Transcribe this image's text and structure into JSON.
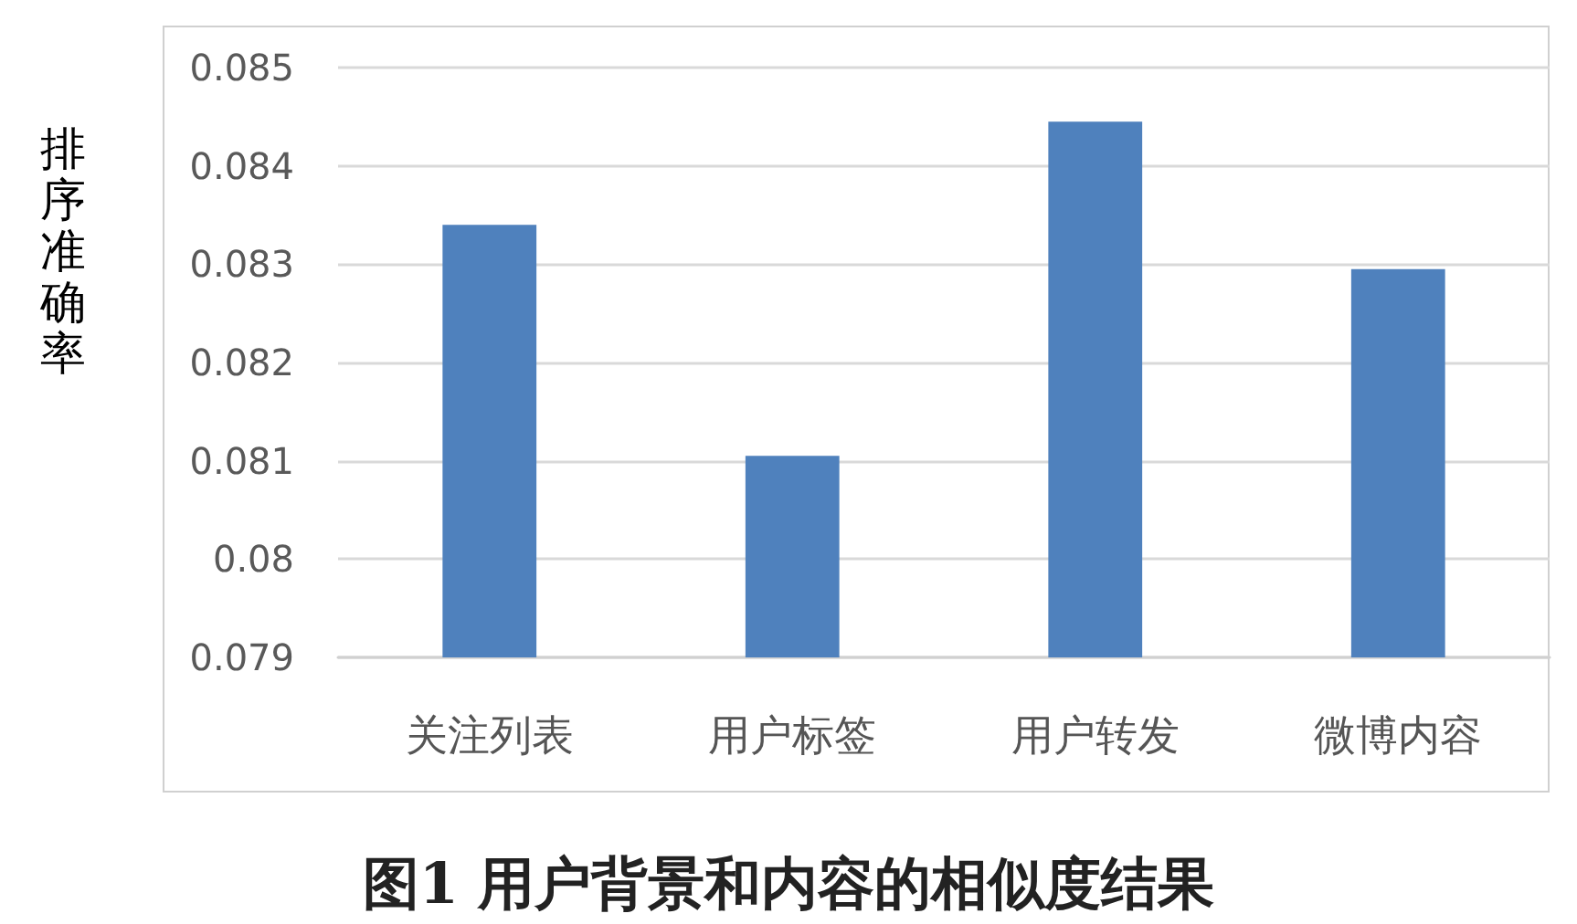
{
  "chart_data": {
    "type": "bar",
    "title": "图1 用户背景和内容的相似度结果",
    "ylabel": "排序准确率",
    "categories": [
      "关注列表",
      "用户标签",
      "用户转发",
      "微博内容"
    ],
    "values": [
      0.0834,
      0.08105,
      0.08445,
      0.08295
    ],
    "color": "#4f81bd",
    "ylim": [
      0.079,
      0.085
    ],
    "yticks": [
      0.079,
      0.08,
      0.081,
      0.082,
      0.083,
      0.084,
      0.085
    ],
    "grid": "y"
  }
}
